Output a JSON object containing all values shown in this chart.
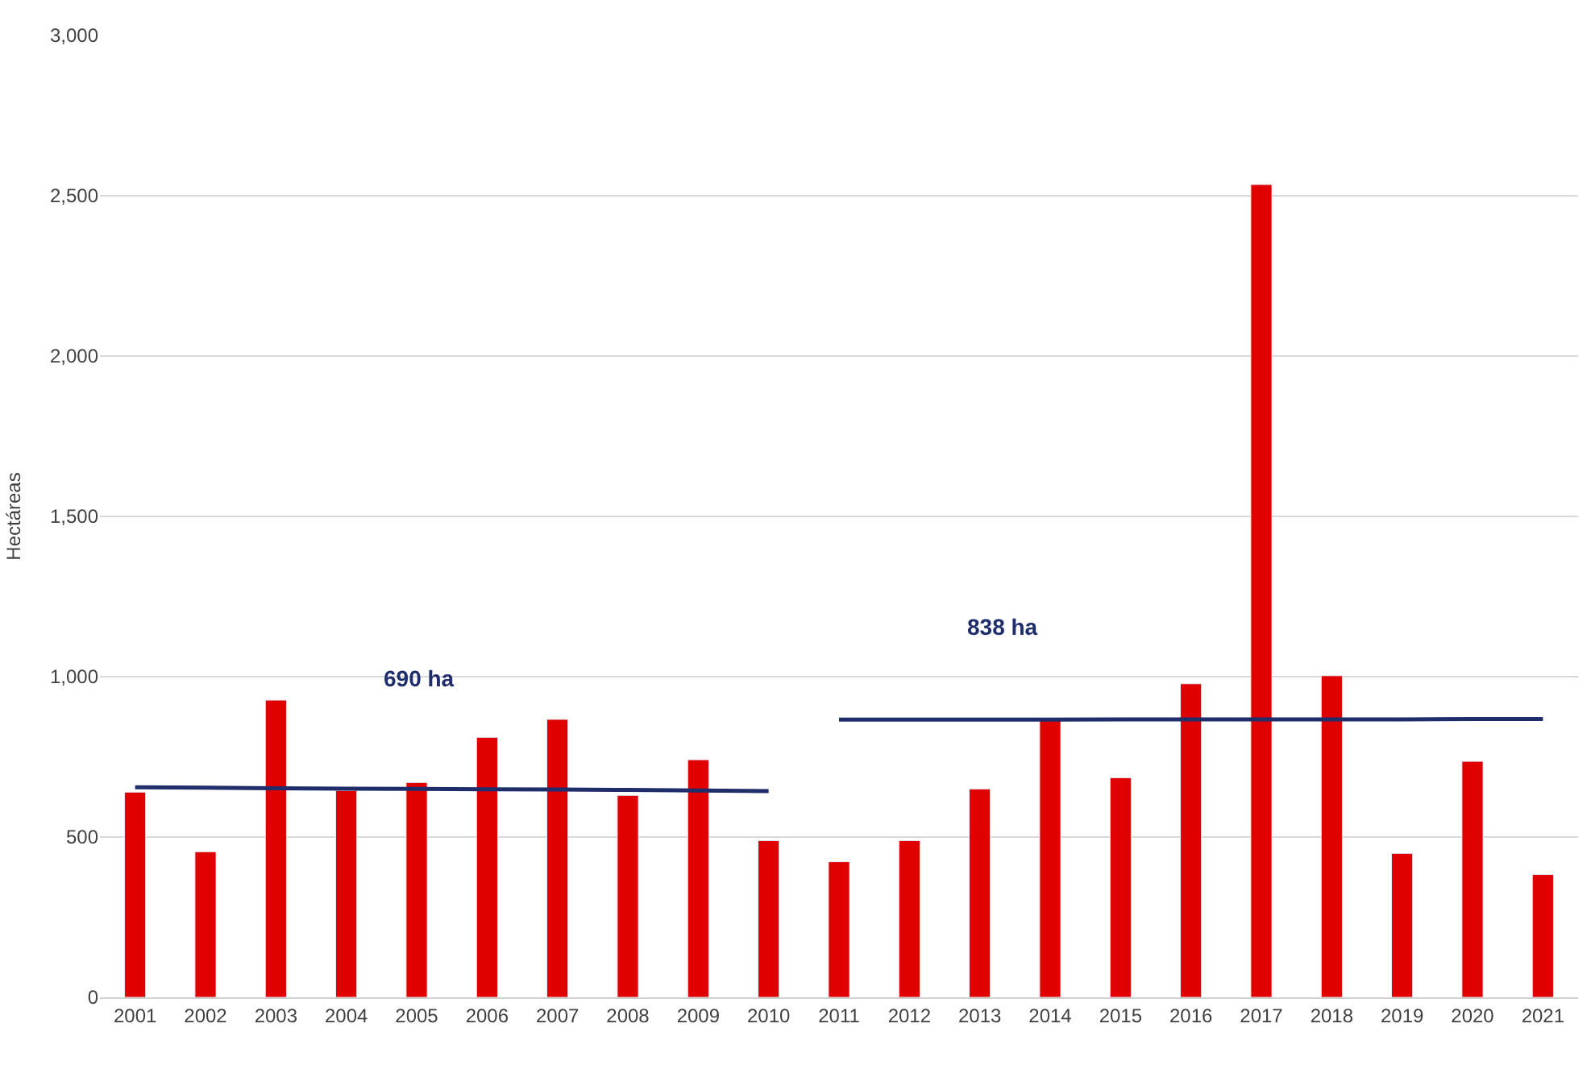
{
  "chart_data": {
    "type": "bar",
    "ylabel": "Hectáreas",
    "categories": [
      "2001",
      "2002",
      "2003",
      "2004",
      "2005",
      "2006",
      "2007",
      "2008",
      "2009",
      "2010",
      "2011",
      "2012",
      "2013",
      "2014",
      "2015",
      "2016",
      "2017",
      "2018",
      "2019",
      "2020",
      "2021"
    ],
    "series": [
      {
        "color": "#e00000",
        "values": [
          640,
          454,
          927,
          645,
          670,
          811,
          867,
          630,
          741,
          489,
          423,
          489,
          650,
          867,
          685,
          978,
          2535,
          1003,
          449,
          736,
          383
        ]
      },
      {
        "type": "line",
        "color": "#1f2d6b",
        "values": [
          655,
          654,
          652,
          651,
          650,
          649,
          648,
          647,
          645,
          643,
          null,
          null,
          null,
          null,
          null,
          null,
          null,
          null,
          null,
          null,
          null
        ]
      },
      {
        "type": "line",
        "color": "#1f2d6b",
        "values": [
          null,
          null,
          null,
          null,
          null,
          null,
          null,
          null,
          null,
          null,
          866,
          866,
          866,
          866,
          867,
          867,
          867,
          867,
          867,
          868,
          868
        ]
      }
    ],
    "annotations": [
      "690 ha",
      "838 ha"
    ],
    "ylim": [
      0,
      3000
    ],
    "yticks": [
      0,
      {
        "value": 500,
        "label": "500"
      },
      {
        "value": 1000,
        "label": "1,000"
      },
      {
        "value": 1500,
        "label": "1,500"
      },
      {
        "value": 2000,
        "label": "2,000"
      },
      {
        "value": 2500,
        "label": "2,500"
      },
      {
        "value": 3000,
        "label": "3,000"
      }
    ],
    "grid": "y"
  }
}
